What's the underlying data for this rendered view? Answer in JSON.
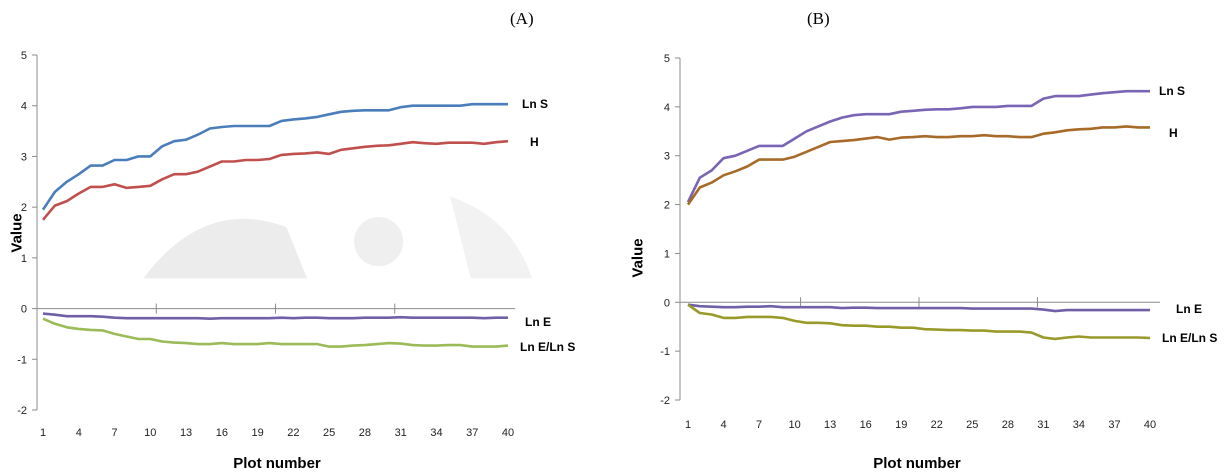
{
  "chart_data": [
    {
      "type": "line",
      "panel_label": "(A)",
      "xlabel": "Plot number",
      "ylabel": "Value",
      "xlim": [
        1,
        40
      ],
      "ylim": [
        -2,
        5
      ],
      "yticks": [
        "-2",
        "-1",
        "0",
        "1",
        "2",
        "3",
        "4",
        "5"
      ],
      "xticks": [
        "1",
        "4",
        "7",
        "10",
        "13",
        "16",
        "19",
        "22",
        "25",
        "28",
        "31",
        "34",
        "37",
        "40"
      ],
      "x": [
        1,
        2,
        3,
        4,
        5,
        6,
        7,
        8,
        9,
        10,
        11,
        12,
        13,
        14,
        15,
        16,
        17,
        18,
        19,
        20,
        21,
        22,
        23,
        24,
        25,
        26,
        27,
        28,
        29,
        30,
        31,
        32,
        33,
        34,
        35,
        36,
        37,
        38,
        39,
        40
      ],
      "series": [
        {
          "name": "Ln S",
          "color": "#4a7ebb",
          "values": [
            1.95,
            2.3,
            2.5,
            2.65,
            2.82,
            2.82,
            2.93,
            2.93,
            3.0,
            3.0,
            3.2,
            3.3,
            3.33,
            3.43,
            3.55,
            3.58,
            3.6,
            3.6,
            3.6,
            3.6,
            3.7,
            3.73,
            3.75,
            3.78,
            3.83,
            3.88,
            3.9,
            3.91,
            3.91,
            3.91,
            3.97,
            4.0,
            4.0,
            4.0,
            4.0,
            4.0,
            4.03,
            4.03,
            4.03,
            4.03
          ]
        },
        {
          "name": "H",
          "color": "#c0504d",
          "values": [
            1.75,
            2.03,
            2.12,
            2.27,
            2.4,
            2.4,
            2.45,
            2.38,
            2.4,
            2.42,
            2.55,
            2.65,
            2.65,
            2.7,
            2.8,
            2.9,
            2.9,
            2.93,
            2.93,
            2.95,
            3.03,
            3.05,
            3.06,
            3.08,
            3.05,
            3.13,
            3.16,
            3.19,
            3.21,
            3.22,
            3.25,
            3.28,
            3.26,
            3.25,
            3.27,
            3.27,
            3.27,
            3.25,
            3.28,
            3.3
          ]
        },
        {
          "name": "Ln E",
          "color": "#7060a8",
          "values": [
            -0.1,
            -0.12,
            -0.15,
            -0.15,
            -0.15,
            -0.16,
            -0.18,
            -0.19,
            -0.19,
            -0.19,
            -0.19,
            -0.19,
            -0.19,
            -0.19,
            -0.2,
            -0.19,
            -0.19,
            -0.19,
            -0.19,
            -0.19,
            -0.18,
            -0.19,
            -0.18,
            -0.18,
            -0.19,
            -0.19,
            -0.19,
            -0.18,
            -0.18,
            -0.18,
            -0.17,
            -0.18,
            -0.18,
            -0.18,
            -0.18,
            -0.18,
            -0.18,
            -0.19,
            -0.18,
            -0.18
          ]
        },
        {
          "name": "Ln E/Ln S",
          "color": "#9bbb59",
          "values": [
            -0.2,
            -0.3,
            -0.37,
            -0.4,
            -0.42,
            -0.43,
            -0.5,
            -0.55,
            -0.6,
            -0.6,
            -0.65,
            -0.67,
            -0.68,
            -0.7,
            -0.7,
            -0.68,
            -0.7,
            -0.7,
            -0.7,
            -0.68,
            -0.7,
            -0.7,
            -0.7,
            -0.7,
            -0.75,
            -0.75,
            -0.73,
            -0.72,
            -0.7,
            -0.68,
            -0.69,
            -0.72,
            -0.73,
            -0.73,
            -0.72,
            -0.72,
            -0.75,
            -0.75,
            -0.75,
            -0.73
          ]
        }
      ],
      "grid": false
    },
    {
      "type": "line",
      "panel_label": "(B)",
      "xlabel": "Plot number",
      "ylabel": "Value",
      "xlim": [
        1,
        40
      ],
      "ylim": [
        -2,
        5
      ],
      "yticks": [
        "-2",
        "-1",
        "0",
        "1",
        "2",
        "3",
        "4",
        "5"
      ],
      "xticks": [
        "1",
        "4",
        "7",
        "10",
        "13",
        "16",
        "19",
        "22",
        "25",
        "28",
        "31",
        "34",
        "37",
        "40"
      ],
      "x": [
        1,
        2,
        3,
        4,
        5,
        6,
        7,
        8,
        9,
        10,
        11,
        12,
        13,
        14,
        15,
        16,
        17,
        18,
        19,
        20,
        21,
        22,
        23,
        24,
        25,
        26,
        27,
        28,
        29,
        30,
        31,
        32,
        33,
        34,
        35,
        36,
        37,
        38,
        39,
        40
      ],
      "series": [
        {
          "name": "Ln S",
          "color": "#7a64b4",
          "values": [
            2.05,
            2.55,
            2.7,
            2.95,
            3.0,
            3.1,
            3.2,
            3.2,
            3.2,
            3.35,
            3.5,
            3.6,
            3.7,
            3.78,
            3.83,
            3.85,
            3.85,
            3.85,
            3.9,
            3.92,
            3.94,
            3.95,
            3.95,
            3.97,
            4.0,
            4.0,
            4.0,
            4.02,
            4.02,
            4.02,
            4.17,
            4.22,
            4.22,
            4.22,
            4.25,
            4.28,
            4.3,
            4.32,
            4.32,
            4.32
          ]
        },
        {
          "name": "H",
          "color": "#a86a28",
          "values": [
            2.0,
            2.35,
            2.45,
            2.6,
            2.68,
            2.78,
            2.92,
            2.92,
            2.92,
            2.98,
            3.08,
            3.18,
            3.28,
            3.3,
            3.32,
            3.35,
            3.38,
            3.33,
            3.37,
            3.38,
            3.4,
            3.38,
            3.38,
            3.4,
            3.4,
            3.42,
            3.4,
            3.4,
            3.38,
            3.38,
            3.45,
            3.48,
            3.52,
            3.54,
            3.55,
            3.58,
            3.58,
            3.6,
            3.58,
            3.58
          ]
        },
        {
          "name": "Ln E",
          "color": "#7060a8",
          "values": [
            -0.05,
            -0.08,
            -0.09,
            -0.1,
            -0.1,
            -0.09,
            -0.09,
            -0.08,
            -0.1,
            -0.1,
            -0.1,
            -0.1,
            -0.1,
            -0.12,
            -0.11,
            -0.11,
            -0.12,
            -0.12,
            -0.12,
            -0.12,
            -0.12,
            -0.12,
            -0.12,
            -0.12,
            -0.13,
            -0.13,
            -0.13,
            -0.13,
            -0.13,
            -0.13,
            -0.15,
            -0.18,
            -0.16,
            -0.16,
            -0.16,
            -0.16,
            -0.16,
            -0.16,
            -0.16,
            -0.16
          ]
        },
        {
          "name": "Ln E/Ln S",
          "color": "#9a9a2a",
          "values": [
            -0.05,
            -0.22,
            -0.25,
            -0.32,
            -0.32,
            -0.3,
            -0.3,
            -0.3,
            -0.32,
            -0.38,
            -0.42,
            -0.42,
            -0.43,
            -0.47,
            -0.48,
            -0.48,
            -0.5,
            -0.5,
            -0.52,
            -0.52,
            -0.55,
            -0.56,
            -0.57,
            -0.57,
            -0.58,
            -0.58,
            -0.6,
            -0.6,
            -0.6,
            -0.62,
            -0.72,
            -0.75,
            -0.72,
            -0.7,
            -0.72,
            -0.72,
            -0.72,
            -0.72,
            -0.72,
            -0.73
          ]
        }
      ],
      "grid": false
    }
  ]
}
